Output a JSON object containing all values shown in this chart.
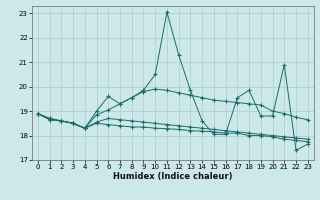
{
  "xlabel": "Humidex (Indice chaleur)",
  "xlim": [
    -0.5,
    23.5
  ],
  "ylim": [
    17,
    23.3
  ],
  "yticks": [
    17,
    18,
    19,
    20,
    21,
    22,
    23
  ],
  "xticks": [
    0,
    1,
    2,
    3,
    4,
    5,
    6,
    7,
    8,
    9,
    10,
    11,
    12,
    13,
    14,
    15,
    16,
    17,
    18,
    19,
    20,
    21,
    22,
    23
  ],
  "bg_color": "#cce8e8",
  "grid_color": "#aacccc",
  "line_color": "#1a6b6b",
  "series": [
    [
      18.9,
      18.7,
      18.6,
      18.5,
      18.3,
      19.0,
      19.6,
      19.3,
      19.55,
      19.85,
      20.5,
      23.05,
      21.3,
      19.85,
      18.6,
      18.05,
      18.05,
      19.55,
      19.85,
      18.8,
      18.8,
      20.9,
      17.4,
      17.65
    ],
    [
      18.9,
      18.7,
      18.6,
      18.5,
      18.3,
      18.85,
      19.05,
      19.3,
      19.55,
      19.8,
      19.9,
      19.85,
      19.75,
      19.65,
      19.55,
      19.45,
      19.4,
      19.35,
      19.3,
      19.25,
      19.0,
      18.9,
      18.75,
      18.65
    ],
    [
      18.9,
      18.65,
      18.6,
      18.5,
      18.3,
      18.5,
      18.45,
      18.4,
      18.35,
      18.35,
      18.3,
      18.28,
      18.25,
      18.2,
      18.18,
      18.15,
      18.1,
      18.1,
      18.0,
      18.0,
      17.95,
      17.85,
      17.8,
      17.75
    ],
    [
      18.9,
      18.65,
      18.6,
      18.5,
      18.3,
      18.55,
      18.7,
      18.65,
      18.6,
      18.55,
      18.5,
      18.45,
      18.4,
      18.35,
      18.3,
      18.25,
      18.2,
      18.15,
      18.1,
      18.05,
      18.0,
      17.95,
      17.9,
      17.85
    ]
  ]
}
